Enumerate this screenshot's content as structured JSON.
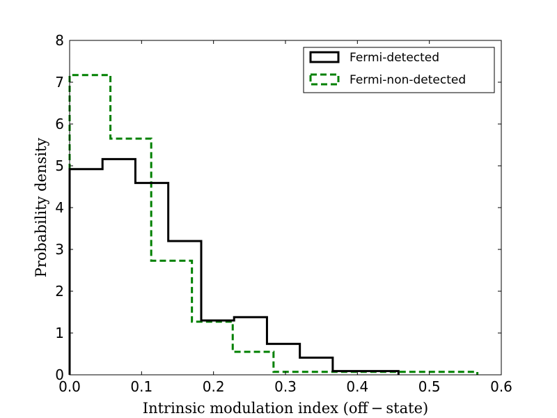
{
  "chart_data": {
    "type": "histogram-step",
    "xlabel": "Intrinsic modulation index (off − state)",
    "ylabel": "Probability density",
    "xlim": [
      0.0,
      0.6
    ],
    "ylim": [
      0,
      8
    ],
    "x_ticks": [
      "0.0",
      "0.1",
      "0.2",
      "0.3",
      "0.4",
      "0.5",
      "0.6"
    ],
    "y_ticks": [
      "0",
      "1",
      "2",
      "3",
      "4",
      "5",
      "6",
      "7",
      "8"
    ],
    "grid": false,
    "legend_position": "top-right",
    "series": [
      {
        "name": "Fermi-detected",
        "color": "#000000",
        "style": "solid",
        "edges": [
          0.0,
          0.0457,
          0.0914,
          0.1371,
          0.1829,
          0.2286,
          0.2743,
          0.32,
          0.3657,
          0.4114,
          0.4571
        ],
        "values": [
          4.92,
          5.16,
          4.59,
          3.2,
          1.3,
          1.38,
          0.74,
          0.41,
          0.09,
          0.09
        ]
      },
      {
        "name": "Fermi-non-detected",
        "color": "#008000",
        "style": "dashed",
        "edges": [
          0.0,
          0.0567,
          0.1134,
          0.17,
          0.2267,
          0.2834,
          0.34,
          0.3967,
          0.4534,
          0.5101,
          0.5667
        ],
        "values": [
          7.17,
          5.65,
          2.73,
          1.27,
          0.55,
          0.07,
          0.07,
          0.07,
          0.07,
          0.07
        ]
      }
    ]
  }
}
